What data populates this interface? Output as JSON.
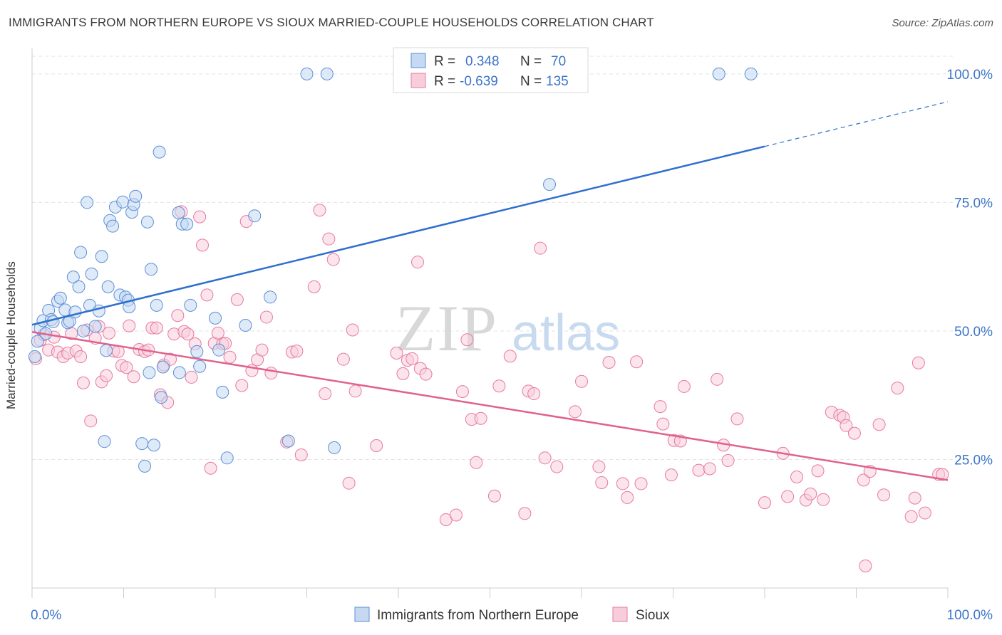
{
  "title": "IMMIGRANTS FROM NORTHERN EUROPE VS SIOUX MARRIED-COUPLE HOUSEHOLDS CORRELATION CHART",
  "source": "Source: ZipAtlas.com",
  "watermark": {
    "zip": "ZIP",
    "atlas": "atlas"
  },
  "colors": {
    "blue": "#5b8fd6",
    "blue_fill": "#c5d9f3",
    "blue_line": "#2f6fcf",
    "pink": "#e87aa0",
    "pink_fill": "#f8cddb",
    "pink_line": "#e0628d",
    "axis_text": "#3c74c8"
  },
  "legend": {
    "rows": [
      {
        "r_label": "R =",
        "r_value": "0.348",
        "n_label": "N =",
        "n_value": "70"
      },
      {
        "r_label": "R =",
        "r_value": "-0.639",
        "n_label": "N =",
        "n_value": "135"
      }
    ]
  },
  "chart_data": {
    "type": "scatter",
    "ylabel": "Married-couple Households",
    "xlabel": "",
    "xlim": [
      0,
      100
    ],
    "ylim": [
      0,
      104
    ],
    "x_tick_labels": [
      "0.0%",
      "100.0%"
    ],
    "y_tick_labels": [
      "25.0%",
      "50.0%",
      "75.0%",
      "100.0%"
    ],
    "y_ticks": [
      25,
      50,
      75,
      100
    ],
    "grid": true,
    "legend_position": "top-center",
    "series": [
      {
        "name": "Immigrants from Northern Europe",
        "color": "#5b8fd6",
        "trend": {
          "x0": 0,
          "y0": 51.2,
          "x1": 80,
          "y1": 85.9,
          "dash_to": 100,
          "dash_y": 94.6
        },
        "points": [
          [
            0.3,
            45.0
          ],
          [
            0.6,
            48.0
          ],
          [
            0.9,
            50.5
          ],
          [
            1.2,
            52.0
          ],
          [
            1.5,
            49.5
          ],
          [
            1.8,
            54.0
          ],
          [
            2.1,
            52.2
          ],
          [
            2.3,
            51.8
          ],
          [
            2.8,
            55.8
          ],
          [
            3.1,
            56.4
          ],
          [
            3.6,
            54.1
          ],
          [
            3.9,
            51.6
          ],
          [
            4.1,
            51.9
          ],
          [
            4.5,
            60.5
          ],
          [
            4.7,
            53.7
          ],
          [
            5.1,
            58.6
          ],
          [
            5.3,
            65.3
          ],
          [
            5.6,
            50.0
          ],
          [
            6.0,
            75.0
          ],
          [
            6.3,
            55.0
          ],
          [
            6.5,
            61.1
          ],
          [
            6.9,
            50.9
          ],
          [
            7.3,
            53.9
          ],
          [
            7.6,
            64.5
          ],
          [
            7.9,
            28.5
          ],
          [
            8.1,
            46.2
          ],
          [
            8.3,
            58.6
          ],
          [
            8.5,
            71.5
          ],
          [
            8.8,
            70.4
          ],
          [
            9.1,
            74.1
          ],
          [
            9.6,
            57.0
          ],
          [
            9.9,
            75.1
          ],
          [
            10.2,
            56.6
          ],
          [
            10.5,
            56.0
          ],
          [
            10.6,
            54.7
          ],
          [
            10.9,
            73.1
          ],
          [
            11.1,
            74.6
          ],
          [
            11.3,
            76.2
          ],
          [
            12.0,
            28.1
          ],
          [
            12.3,
            23.7
          ],
          [
            12.6,
            71.2
          ],
          [
            12.8,
            41.9
          ],
          [
            13.0,
            62.0
          ],
          [
            13.3,
            27.8
          ],
          [
            13.6,
            55.0
          ],
          [
            14.1,
            37.1
          ],
          [
            13.9,
            84.8
          ],
          [
            14.3,
            43.0
          ],
          [
            16.0,
            73.0
          ],
          [
            16.4,
            70.8
          ],
          [
            16.1,
            41.9
          ],
          [
            16.9,
            70.8
          ],
          [
            17.3,
            55.0
          ],
          [
            18.0,
            46.0
          ],
          [
            18.3,
            43.1
          ],
          [
            20.0,
            52.5
          ],
          [
            20.4,
            46.3
          ],
          [
            20.8,
            38.1
          ],
          [
            21.3,
            25.3
          ],
          [
            23.3,
            51.1
          ],
          [
            24.3,
            72.4
          ],
          [
            26.0,
            56.6
          ],
          [
            28.0,
            28.6
          ],
          [
            30.0,
            100.0
          ],
          [
            32.2,
            100.0
          ],
          [
            33.0,
            27.3
          ],
          [
            53.5,
            100.0
          ],
          [
            56.5,
            78.5
          ],
          [
            75.0,
            100.0
          ],
          [
            78.5,
            100.0
          ]
        ]
      },
      {
        "name": "Sioux",
        "color": "#e87aa0",
        "trend": {
          "x0": 0,
          "y0": 49.8,
          "x1": 100,
          "y1": 21.0
        },
        "points": [
          [
            0.4,
            44.6
          ],
          [
            0.9,
            48.2
          ],
          [
            1.3,
            49.3
          ],
          [
            1.8,
            46.3
          ],
          [
            2.4,
            48.8
          ],
          [
            2.8,
            45.9
          ],
          [
            3.4,
            45.0
          ],
          [
            3.9,
            45.7
          ],
          [
            4.3,
            49.5
          ],
          [
            4.8,
            46.1
          ],
          [
            5.3,
            45.0
          ],
          [
            5.6,
            39.9
          ],
          [
            6.0,
            50.2
          ],
          [
            6.4,
            32.5
          ],
          [
            6.9,
            48.6
          ],
          [
            7.3,
            50.9
          ],
          [
            7.6,
            40.1
          ],
          [
            8.1,
            41.3
          ],
          [
            8.4,
            49.6
          ],
          [
            8.9,
            46.1
          ],
          [
            9.4,
            46.0
          ],
          [
            9.8,
            43.3
          ],
          [
            10.3,
            42.9
          ],
          [
            10.6,
            51.0
          ],
          [
            11.1,
            41.1
          ],
          [
            11.7,
            46.4
          ],
          [
            12.3,
            46.0
          ],
          [
            12.7,
            46.3
          ],
          [
            13.1,
            50.6
          ],
          [
            13.6,
            50.6
          ],
          [
            14.0,
            37.6
          ],
          [
            14.4,
            43.4
          ],
          [
            14.8,
            36.1
          ],
          [
            15.1,
            44.5
          ],
          [
            15.5,
            49.4
          ],
          [
            15.9,
            53.0
          ],
          [
            16.3,
            73.2
          ],
          [
            16.6,
            49.9
          ],
          [
            17.0,
            49.4
          ],
          [
            17.4,
            41.0
          ],
          [
            17.8,
            47.5
          ],
          [
            18.3,
            72.2
          ],
          [
            18.6,
            66.7
          ],
          [
            19.1,
            57.0
          ],
          [
            19.5,
            23.3
          ],
          [
            19.9,
            47.6
          ],
          [
            20.3,
            49.6
          ],
          [
            20.8,
            47.5
          ],
          [
            21.1,
            47.6
          ],
          [
            21.6,
            44.9
          ],
          [
            22.4,
            56.1
          ],
          [
            22.9,
            39.4
          ],
          [
            23.4,
            71.3
          ],
          [
            24.0,
            42.3
          ],
          [
            24.6,
            44.4
          ],
          [
            25.1,
            46.3
          ],
          [
            25.6,
            52.7
          ],
          [
            26.1,
            41.8
          ],
          [
            27.8,
            28.4
          ],
          [
            28.4,
            45.9
          ],
          [
            28.9,
            46.1
          ],
          [
            29.4,
            25.9
          ],
          [
            30.8,
            58.6
          ],
          [
            31.4,
            73.5
          ],
          [
            32.0,
            37.8
          ],
          [
            32.4,
            67.9
          ],
          [
            32.9,
            63.9
          ],
          [
            34.0,
            44.5
          ],
          [
            34.6,
            20.4
          ],
          [
            35.0,
            50.2
          ],
          [
            35.3,
            38.3
          ],
          [
            37.6,
            27.7
          ],
          [
            39.8,
            45.7
          ],
          [
            40.5,
            41.7
          ],
          [
            41.0,
            44.3
          ],
          [
            41.5,
            44.6
          ],
          [
            42.1,
            63.4
          ],
          [
            42.4,
            42.7
          ],
          [
            43.0,
            41.6
          ],
          [
            45.2,
            13.3
          ],
          [
            46.3,
            14.2
          ],
          [
            47.0,
            38.2
          ],
          [
            47.5,
            48.3
          ],
          [
            48.0,
            32.8
          ],
          [
            48.5,
            24.4
          ],
          [
            49.0,
            33.0
          ],
          [
            50.5,
            17.9
          ],
          [
            51.0,
            39.3
          ],
          [
            52.2,
            45.1
          ],
          [
            53.8,
            14.5
          ],
          [
            54.2,
            38.3
          ],
          [
            54.8,
            37.8
          ],
          [
            55.5,
            66.1
          ],
          [
            56.0,
            25.3
          ],
          [
            57.3,
            23.6
          ],
          [
            59.3,
            34.3
          ],
          [
            60.0,
            40.2
          ],
          [
            61.9,
            23.6
          ],
          [
            62.2,
            20.5
          ],
          [
            63.0,
            43.9
          ],
          [
            64.5,
            20.3
          ],
          [
            65.0,
            17.6
          ],
          [
            66.0,
            44.0
          ],
          [
            66.5,
            20.3
          ],
          [
            68.6,
            35.3
          ],
          [
            68.9,
            31.9
          ],
          [
            69.8,
            22.0
          ],
          [
            70.1,
            28.7
          ],
          [
            70.8,
            28.6
          ],
          [
            71.2,
            39.2
          ],
          [
            72.8,
            22.9
          ],
          [
            74.0,
            23.2
          ],
          [
            74.8,
            40.6
          ],
          [
            75.5,
            27.8
          ],
          [
            76.0,
            24.8
          ],
          [
            77.0,
            32.9
          ],
          [
            80.0,
            16.6
          ],
          [
            82.0,
            26.2
          ],
          [
            82.5,
            17.8
          ],
          [
            83.5,
            21.6
          ],
          [
            84.5,
            17.1
          ],
          [
            85.0,
            18.3
          ],
          [
            85.8,
            22.8
          ],
          [
            86.4,
            17.2
          ],
          [
            87.3,
            34.2
          ],
          [
            88.2,
            33.6
          ],
          [
            88.6,
            33.2
          ],
          [
            88.9,
            31.6
          ],
          [
            89.8,
            30.1
          ],
          [
            90.8,
            21.0
          ],
          [
            91.0,
            4.3
          ],
          [
            91.5,
            22.7
          ],
          [
            92.5,
            31.8
          ],
          [
            93.0,
            18.1
          ],
          [
            94.5,
            38.9
          ],
          [
            96.0,
            13.9
          ],
          [
            96.4,
            17.5
          ],
          [
            96.8,
            43.8
          ],
          [
            97.5,
            14.6
          ],
          [
            99.0,
            22.1
          ],
          [
            99.4,
            22.1
          ]
        ]
      }
    ]
  },
  "bottom_legend": {
    "items": [
      {
        "label": "Immigrants from Northern Europe"
      },
      {
        "label": "Sioux"
      }
    ]
  }
}
